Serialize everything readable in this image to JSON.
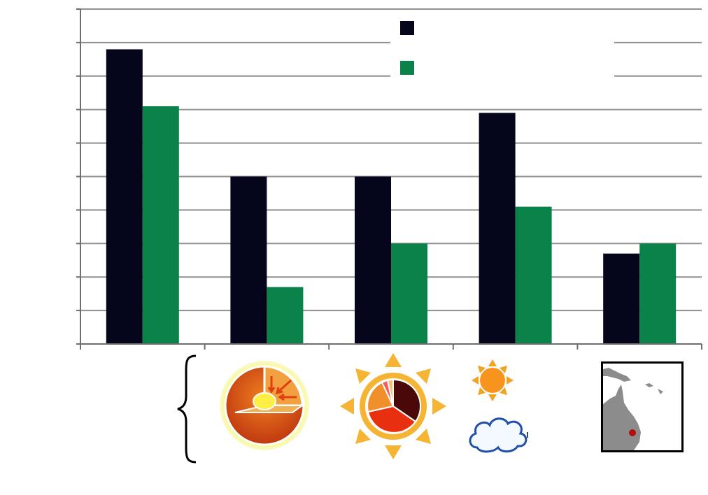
{
  "chart_data": {
    "type": "bar",
    "title": "",
    "xlabel": "",
    "ylabel": "",
    "categories": [
      "",
      "",
      "",
      "",
      ""
    ],
    "series": [
      {
        "name": "",
        "color": "#05051c",
        "values": [
          8.8,
          5.0,
          5.0,
          6.9,
          2.7
        ]
      },
      {
        "name": "",
        "color": "#0a824a",
        "values": [
          7.1,
          1.7,
          3.0,
          4.1,
          3.0
        ]
      }
    ],
    "ylim": [
      0,
      10
    ],
    "grid": true,
    "legend": "top-right"
  },
  "colors": {
    "gridline": "#909090",
    "axis": "#6e6e6e"
  },
  "icons": [
    {
      "name": "brace-icon"
    },
    {
      "name": "earth-core-icon"
    },
    {
      "name": "sun-pie-icon"
    },
    {
      "name": "sun-cloud-icon"
    },
    {
      "name": "australia-map-icon"
    }
  ]
}
